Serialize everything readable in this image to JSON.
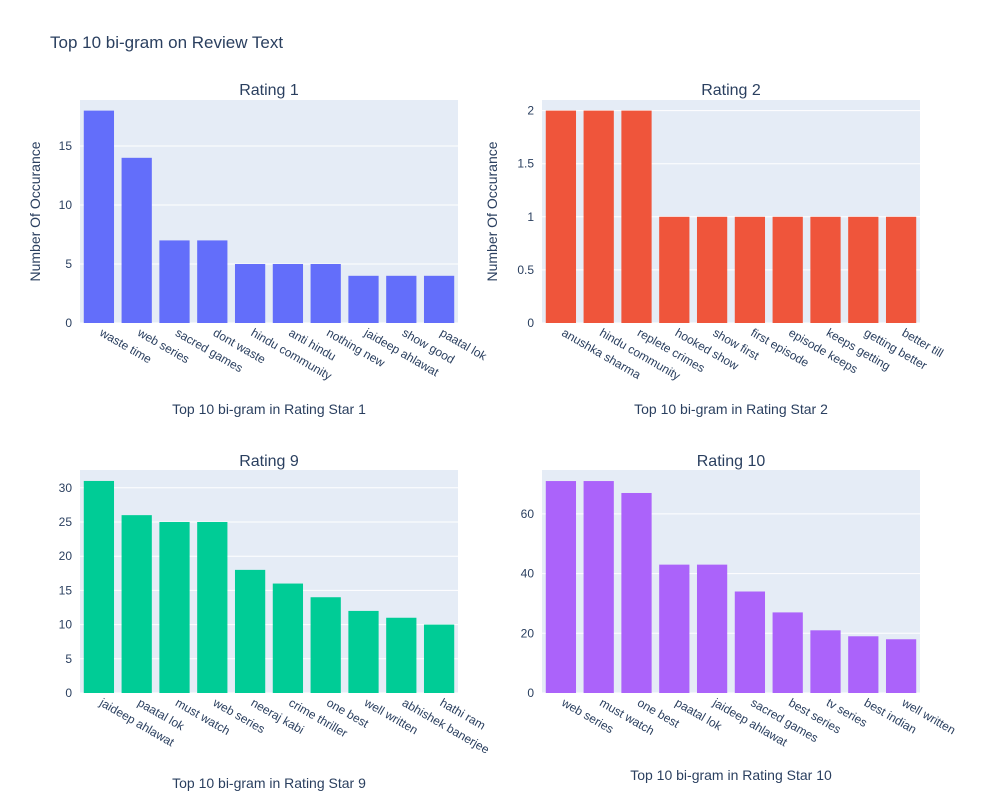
{
  "title": "Top 10 bi-gram on Review Text",
  "chart_data": [
    {
      "type": "bar",
      "title": "Rating 1",
      "xlabel": "Top 10 bi-gram in Rating Star 1",
      "ylabel": "Number Of Occurance",
      "categories": [
        "waste time",
        "web series",
        "sacred games",
        "dont waste",
        "hindu community",
        "anti hindu",
        "nothing new",
        "jaideep ahlawat",
        "show good",
        "paatal lok"
      ],
      "values": [
        18,
        14,
        7,
        7,
        5,
        5,
        5,
        4,
        4,
        4
      ],
      "ylim": [
        0,
        18.9
      ],
      "yticks": [
        0,
        5,
        10,
        15
      ],
      "ytick_labels": [
        "0",
        "5",
        "10",
        "15"
      ],
      "color": "#636efa"
    },
    {
      "type": "bar",
      "title": "Rating 2",
      "xlabel": "Top 10 bi-gram in Rating Star 2",
      "ylabel": "Number Of Occurance",
      "categories": [
        "anushka sharma",
        "hindu community",
        "replete crimes",
        "hooked show",
        "show first",
        "first episode",
        "episode keeps",
        "keeps getting",
        "getting better",
        "better till"
      ],
      "values": [
        2,
        2,
        2,
        1,
        1,
        1,
        1,
        1,
        1,
        1
      ],
      "ylim": [
        0,
        2.1
      ],
      "yticks": [
        0,
        0.5,
        1,
        1.5,
        2
      ],
      "ytick_labels": [
        "0",
        "0.5",
        "1",
        "1.5",
        "2"
      ],
      "color": "#ef553b"
    },
    {
      "type": "bar",
      "title": "Rating 9",
      "xlabel": "Top 10 bi-gram in Rating Star 9",
      "ylabel": "",
      "categories": [
        "jaideep ahlawat",
        "paatal lok",
        "must watch",
        "web series",
        "neeraj kabi",
        "crime thriller",
        "one best",
        "well written",
        "abhishek banerjee",
        "hathi ram"
      ],
      "values": [
        31,
        26,
        25,
        25,
        18,
        16,
        14,
        12,
        11,
        10
      ],
      "ylim": [
        0,
        32.6
      ],
      "yticks": [
        0,
        5,
        10,
        15,
        20,
        25,
        30
      ],
      "ytick_labels": [
        "0",
        "5",
        "10",
        "15",
        "20",
        "25",
        "30"
      ],
      "color": "#00cc96"
    },
    {
      "type": "bar",
      "title": "Rating 10",
      "xlabel": "Top 10 bi-gram in Rating Star 10",
      "ylabel": "",
      "categories": [
        "web series",
        "must watch",
        "one best",
        "paatal lok",
        "jaideep ahlawat",
        "sacred games",
        "best series",
        "tv series",
        "best indian",
        "well written"
      ],
      "values": [
        71,
        71,
        67,
        43,
        43,
        34,
        27,
        21,
        19,
        18
      ],
      "ylim": [
        0,
        74.7
      ],
      "yticks": [
        0,
        20,
        40,
        60
      ],
      "ytick_labels": [
        "0",
        "20",
        "40",
        "60"
      ],
      "color": "#ab63fa"
    }
  ]
}
